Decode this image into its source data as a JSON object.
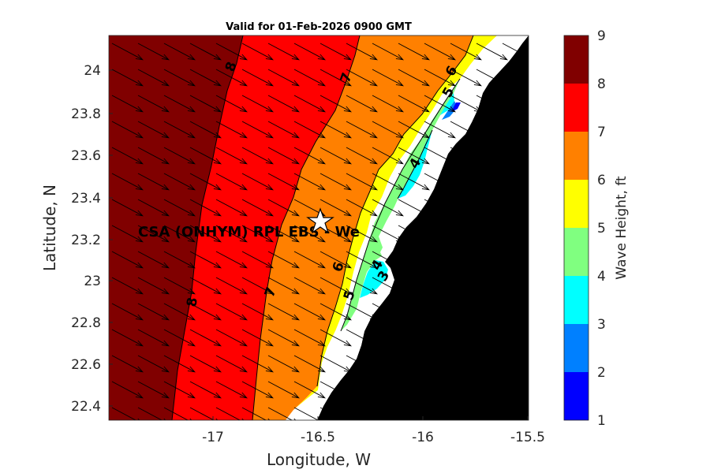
{
  "title": "Valid for 01-Feb-2026 0900 GMT",
  "xlabel": "Longitude, W",
  "ylabel": "Latitude, N",
  "colorbar_label": "Wave Height, ft",
  "x_ticks": [
    "-17",
    "-16.5",
    "-16",
    "-15.5"
  ],
  "y_ticks": [
    "24",
    "23.8",
    "23.6",
    "23.4",
    "23.2",
    "23",
    "22.8",
    "22.6",
    "22.4"
  ],
  "colorbar_ticks": [
    "9",
    "8",
    "7",
    "6",
    "5",
    "4",
    "3",
    "2",
    "1"
  ],
  "station_label": "CSA (ONHYM) RPL EBS - We",
  "contour_labels": [
    "8",
    "7",
    "6",
    "6",
    "5",
    "4",
    "7",
    "8",
    "6",
    "5",
    "4",
    "3"
  ],
  "chart_data": {
    "type": "heatmap",
    "title": "Valid for 01-Feb-2026 0900 GMT",
    "xlabel": "Longitude, W",
    "ylabel": "Latitude, N",
    "xlim": [
      -17.5,
      -15.5
    ],
    "ylim": [
      22.33,
      24.17
    ],
    "colorbar": {
      "label": "Wave Height, ft",
      "range": [
        1,
        9
      ],
      "levels": [
        {
          "from": 1,
          "to": 2,
          "color": "#0000ff"
        },
        {
          "from": 2,
          "to": 3,
          "color": "#0080ff"
        },
        {
          "from": 3,
          "to": 4,
          "color": "#00ffff"
        },
        {
          "from": 4,
          "to": 5,
          "color": "#80ff80"
        },
        {
          "from": 5,
          "to": 6,
          "color": "#ffff00"
        },
        {
          "from": 6,
          "to": 7,
          "color": "#ff8000"
        },
        {
          "from": 7,
          "to": 8,
          "color": "#ff0000"
        },
        {
          "from": 8,
          "to": 9,
          "color": "#800000"
        }
      ]
    },
    "land_color": "#000000",
    "station": {
      "lon": -16.51,
      "lat": 23.29,
      "marker": "star"
    },
    "wave_direction": "toward the southeast (arrows)"
  }
}
